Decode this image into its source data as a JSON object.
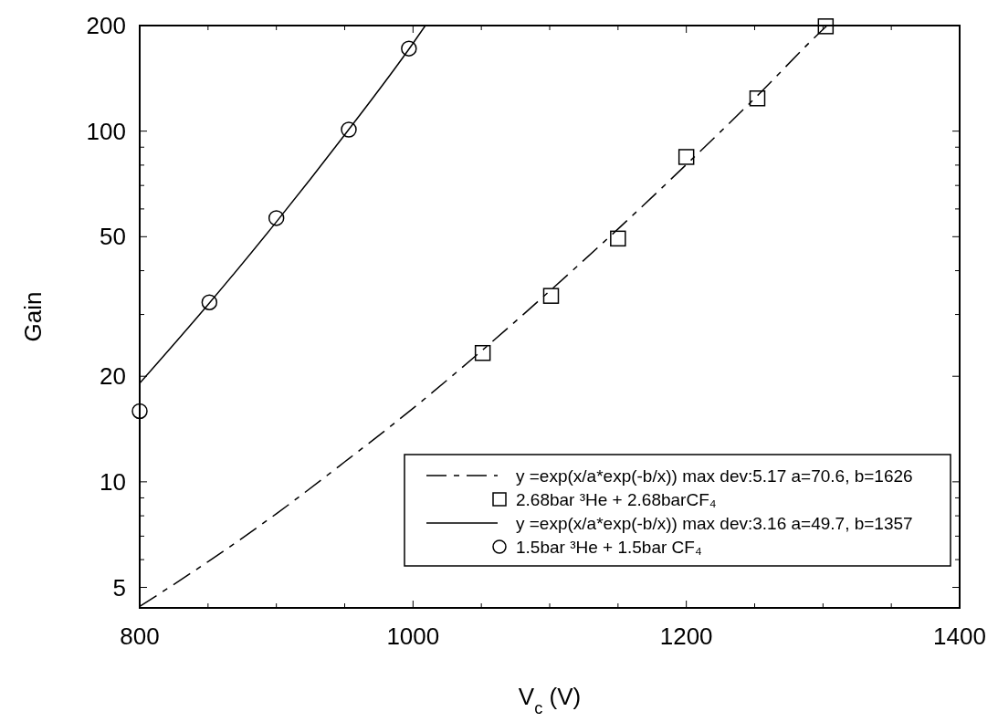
{
  "chart_data": {
    "type": "scatter",
    "xlabel": "V$_{c}$ (V)",
    "ylabel": "Gain",
    "log": "y",
    "grid": false,
    "legend": "bottom right",
    "xlim": [
      800,
      1400
    ],
    "ylim": [
      4.37,
      200
    ],
    "xticks": [
      800,
      {
        "value": 850,
        "label": null
      },
      {
        "value": 900,
        "label": null
      },
      {
        "value": 950,
        "label": null
      },
      1000,
      {
        "value": 1050,
        "label": null
      },
      {
        "value": 1100,
        "label": null
      },
      {
        "value": 1150,
        "label": null
      },
      1200,
      {
        "value": 1250,
        "label": null
      },
      {
        "value": 1300,
        "label": null
      },
      {
        "value": 1350,
        "label": null
      },
      1400
    ],
    "yticks": [
      5,
      {
        "value": 6,
        "label": null
      },
      {
        "value": 7,
        "label": null
      },
      {
        "value": 8,
        "label": null
      },
      {
        "value": 9,
        "label": null
      },
      10,
      20,
      {
        "value": 30,
        "label": null
      },
      {
        "value": 40,
        "label": null
      },
      50,
      {
        "value": 60,
        "label": null
      },
      {
        "value": 70,
        "label": null
      },
      {
        "value": 80,
        "label": null
      },
      {
        "value": 90,
        "label": null
      },
      100,
      200
    ],
    "series": [
      {
        "name": "y =exp(x/a*exp(-b/x)) max dev:5.17 a=70.6, b=1626",
        "type": "line",
        "color": "#000000",
        "line_style": "dashed",
        "marker": "none",
        "x": [
          800,
          850,
          900,
          950,
          1000,
          1050,
          1100,
          1150,
          1200,
          1250,
          1300,
          1303
        ],
        "values": [
          4.41,
          5.92,
          8.11,
          11.4,
          16.2,
          23.6,
          35,
          52.6,
          80.3,
          124,
          195,
          200
        ]
      },
      {
        "name": "2.68bar ³He + 2.68barCF₄",
        "color": "#000000",
        "marker": "square",
        "x": [
          1051,
          1101,
          1150,
          1200,
          1252,
          1302
        ],
        "values": [
          23.3,
          33.9,
          49.4,
          84.4,
          124,
          199
        ]
      },
      {
        "name": "y =exp(x/a*exp(-b/x)) max dev:3.16 a=49.7, b=1357",
        "type": "line",
        "color": "#000000",
        "line_style": "solid",
        "marker": "none",
        "x": [
          800,
          850,
          900,
          950,
          1000,
          1009
        ],
        "values": [
          19.1,
          32,
          55.1,
          97.6,
          178,
          200
        ]
      },
      {
        "name": "1.5bar ³He + 1.5bar CF₄",
        "color": "#000000",
        "marker": "circle",
        "x": [
          800,
          851,
          900,
          953,
          997
        ],
        "values": [
          15.9,
          32.5,
          56.5,
          101,
          172
        ]
      }
    ]
  }
}
